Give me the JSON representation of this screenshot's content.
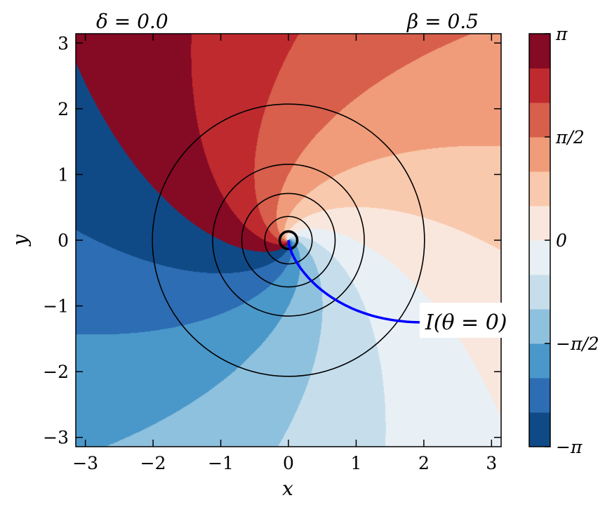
{
  "chart_data": {
    "type": "heatmap",
    "title_left": "δ = 0.0",
    "title_right": "β = 0.5",
    "xlabel": "x",
    "ylabel": "y",
    "xlim": [
      -3.14159,
      3.14159
    ],
    "ylim": [
      -3.14159,
      3.14159
    ],
    "x_ticks": [
      -3,
      -2,
      -1,
      0,
      1,
      2,
      3
    ],
    "x_tick_labels": [
      "−3",
      "−2",
      "−1",
      "0",
      "1",
      "2",
      "3"
    ],
    "y_ticks": [
      -3,
      -2,
      -1,
      0,
      1,
      2,
      3
    ],
    "y_tick_labels": [
      "−3",
      "−2",
      "−1",
      "0",
      "1",
      "2",
      "3"
    ],
    "field": "phase angle: atan2(y, x) + 0.5·ln(r), wrapped to [−π, π]",
    "contour_levels": 12,
    "colormap": [
      "#0f4a87",
      "#2d6db3",
      "#4a98c9",
      "#8ec1de",
      "#c6deec",
      "#e8f0f5",
      "#f9e7dd",
      "#f9c9ad",
      "#f09c7a",
      "#d75f4c",
      "#bf2a2f",
      "#850a24"
    ],
    "circles": [
      {
        "radius": 0.13,
        "color": "#000000"
      },
      {
        "radius": 0.35,
        "color": "#000000"
      },
      {
        "radius": 0.69,
        "color": "#000000"
      },
      {
        "radius": 1.12,
        "color": "#000000"
      },
      {
        "radius": 2.01,
        "color": "#000000"
      }
    ],
    "curve": {
      "label": "I(θ = 0)",
      "color": "#0000ff",
      "label_x": 2.0,
      "label_y": -1.25
    },
    "colorbar": {
      "range": [
        -3.14159,
        3.14159
      ],
      "ticks": [
        -3.14159,
        -1.5708,
        0,
        1.5708,
        3.14159
      ],
      "tick_labels": [
        "−π",
        "−π/2",
        "0",
        "π/2",
        "π"
      ]
    },
    "grid": false,
    "legend": "none"
  }
}
